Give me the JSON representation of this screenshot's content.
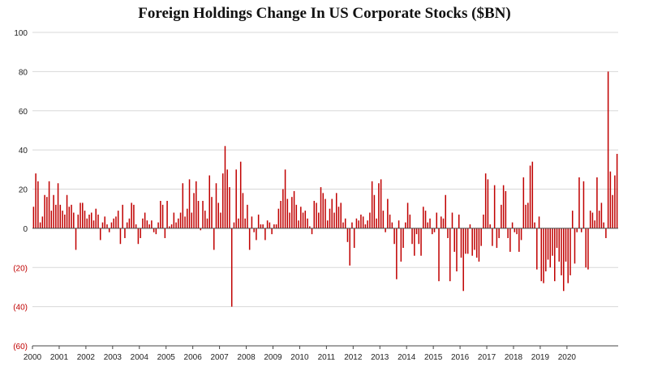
{
  "chart_data": {
    "type": "bar",
    "title": "Foreign Holdings Change In US Corporate Stocks ($BN)",
    "xlabel": "",
    "ylabel": "",
    "ylim": [
      -60,
      100
    ],
    "grid": true,
    "bar_color": "#c00000",
    "negative_label_color": "#c00000",
    "y_ticks": [
      {
        "value": 100,
        "label": "100",
        "negative": false
      },
      {
        "value": 80,
        "label": "80",
        "negative": false
      },
      {
        "value": 60,
        "label": "60",
        "negative": false
      },
      {
        "value": 40,
        "label": "40",
        "negative": false
      },
      {
        "value": 20,
        "label": "20",
        "negative": false
      },
      {
        "value": 0,
        "label": "0",
        "negative": false
      },
      {
        "value": -20,
        "label": "(20)",
        "negative": true
      },
      {
        "value": -40,
        "label": "(40)",
        "negative": true
      },
      {
        "value": -60,
        "label": "(60)",
        "negative": true
      }
    ],
    "x_ticks": [
      "2000",
      "2001",
      "2002",
      "2003",
      "2004",
      "2005",
      "2006",
      "2007",
      "2008",
      "2009",
      "2010",
      "2011",
      "2012",
      "2013",
      "2014",
      "2015",
      "2016",
      "2017",
      "2018",
      "2019",
      "2020"
    ],
    "x_range": [
      "2000-01",
      "2020-10"
    ],
    "series": [
      {
        "values": [
          11,
          28,
          24,
          3,
          6,
          17,
          16,
          24,
          9,
          17,
          12,
          23,
          12,
          9,
          7,
          17,
          11,
          12,
          8,
          -11,
          7,
          13,
          13,
          9,
          5,
          7,
          8,
          4,
          10,
          7,
          -6,
          3,
          6,
          2,
          -2,
          3,
          5,
          6,
          9,
          -8,
          12,
          -5,
          3,
          5,
          13,
          12,
          2,
          -8,
          -5,
          5,
          8,
          4,
          2,
          4,
          -2,
          -3,
          3,
          14,
          12,
          -5,
          14,
          1,
          2,
          8,
          3,
          5,
          8,
          23,
          6,
          10,
          25,
          8,
          18,
          24,
          14,
          -1,
          14,
          9,
          5,
          27,
          16,
          -11,
          23,
          13,
          8,
          28,
          42,
          30,
          21,
          -40,
          3,
          30,
          5,
          34,
          18,
          5,
          12,
          -11,
          6,
          -2,
          -6,
          7,
          2,
          2,
          -6,
          4,
          3,
          -3,
          2,
          2,
          10,
          14,
          20,
          30,
          15,
          8,
          16,
          19,
          12,
          4,
          11,
          8,
          9,
          5,
          1,
          -3,
          14,
          13,
          8,
          21,
          18,
          15,
          4,
          10,
          15,
          8,
          18,
          11,
          13,
          3,
          5,
          -7,
          -19,
          3,
          -10,
          5,
          4,
          7,
          6,
          2,
          4,
          8,
          24,
          17,
          5,
          23,
          25,
          9,
          -2,
          15,
          7,
          3,
          -8,
          -26,
          4,
          -17,
          -10,
          3,
          13,
          7,
          -8,
          -14,
          -3,
          -8,
          -14,
          11,
          9,
          3,
          5,
          -3,
          -2,
          8,
          -27,
          6,
          5,
          17,
          -5,
          -27,
          8,
          -12,
          -22,
          7,
          -15,
          -32,
          -13,
          -13,
          2,
          -14,
          -11,
          -15,
          -17,
          -9,
          7,
          28,
          25,
          2,
          -9,
          22,
          -10,
          -5,
          12,
          22,
          19,
          -5,
          -12,
          3,
          -2,
          -3,
          -12,
          -6,
          26,
          12,
          13,
          32,
          34,
          3,
          -21,
          6,
          -27,
          -28,
          -22,
          -16,
          -20,
          -14,
          -27,
          -10,
          -17,
          -24,
          -32,
          -17,
          -28,
          -24,
          9,
          -18,
          -2,
          26,
          -2,
          24,
          -20,
          -21,
          9,
          8,
          4,
          26,
          9,
          13,
          3,
          -5,
          80,
          29,
          17,
          27,
          38
        ]
      }
    ]
  }
}
